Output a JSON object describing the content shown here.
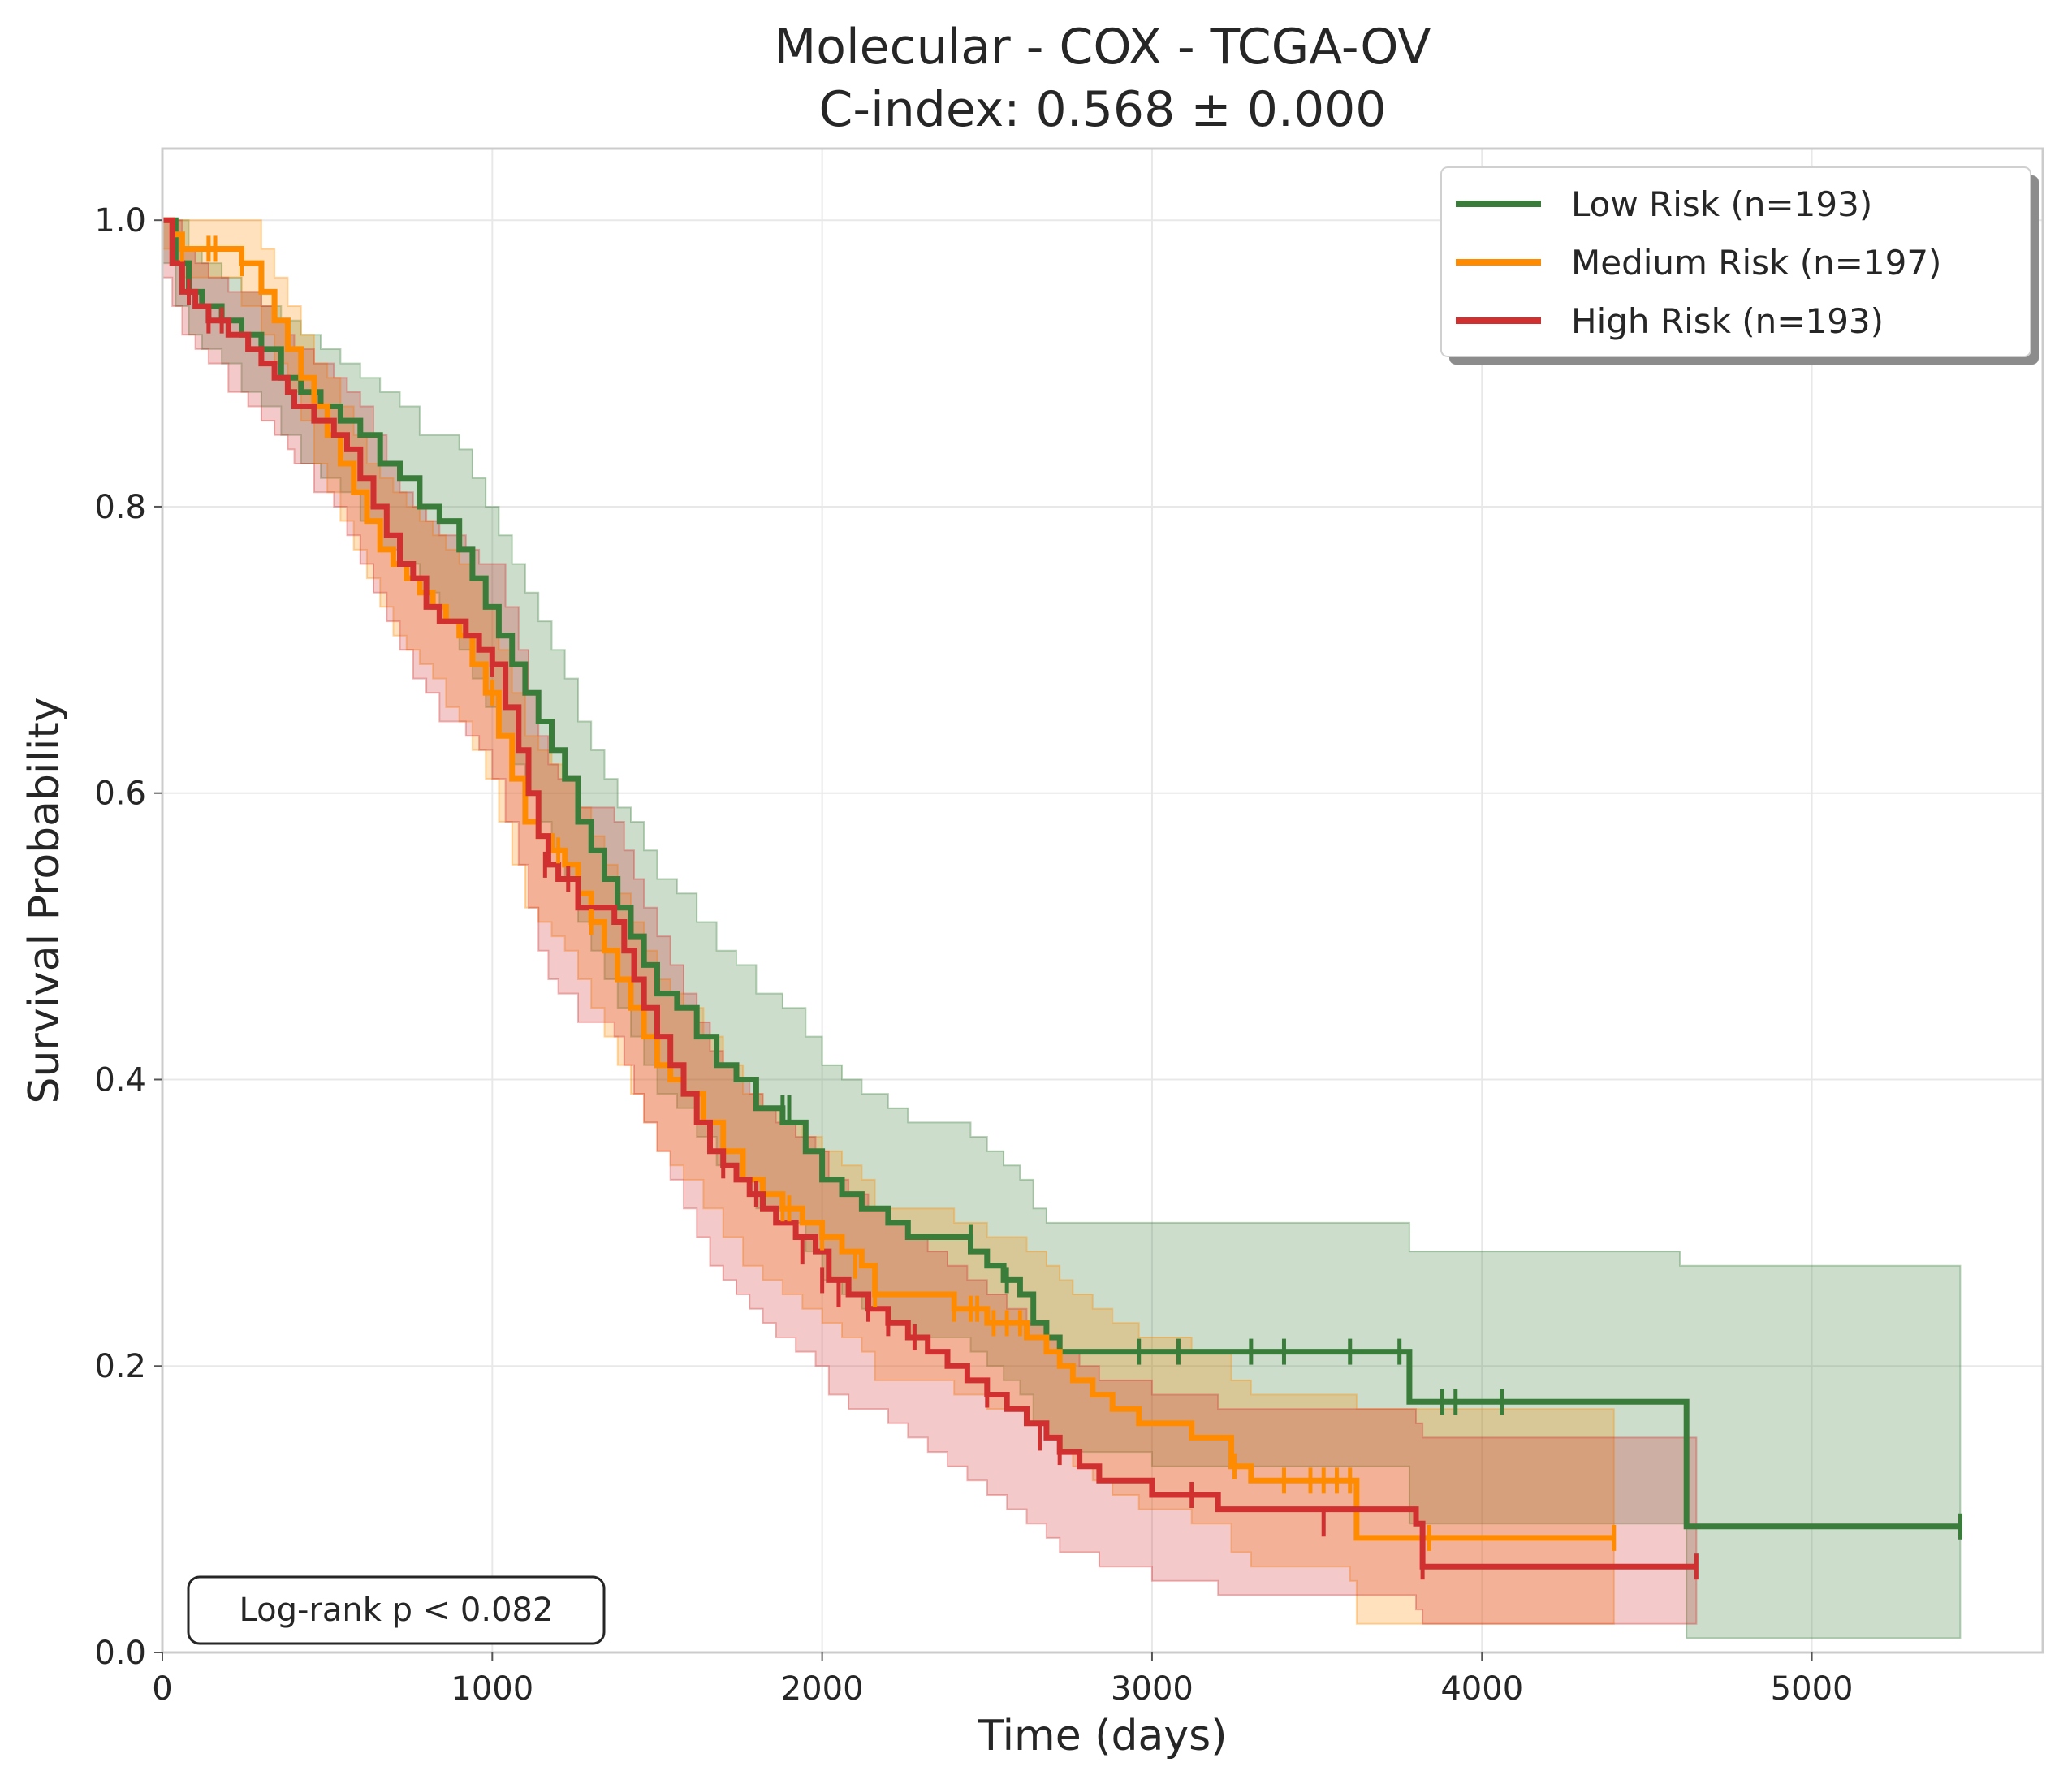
{
  "chart_data": {
    "type": "line",
    "title": "Molecular - COX - TCGA-OV",
    "subtitle": "C-index: 0.568 ± 0.000",
    "xlabel": "Time (days)",
    "ylabel": "Survival Probability",
    "xlim": [
      0,
      5700
    ],
    "ylim": [
      0,
      1.05
    ],
    "xticks": [
      0,
      1000,
      2000,
      3000,
      4000,
      5000
    ],
    "yticks": [
      0.0,
      0.2,
      0.4,
      0.6,
      0.8,
      1.0
    ],
    "xtick_labels": [
      "0",
      "1000",
      "2000",
      "3000",
      "4000",
      "5000"
    ],
    "ytick_labels": [
      "0.0",
      "0.2",
      "0.4",
      "0.6",
      "0.8",
      "1.0"
    ],
    "grid": true,
    "legend_position": "top-right",
    "annotation": "Log-rank p < 0.082",
    "series": [
      {
        "name": "Low Risk (n=193)",
        "color": "#3a7d3a",
        "x": [
          0,
          40,
          80,
          120,
          180,
          240,
          300,
          360,
          420,
          480,
          540,
          600,
          660,
          720,
          780,
          840,
          900,
          940,
          980,
          1020,
          1060,
          1100,
          1140,
          1180,
          1220,
          1260,
          1300,
          1340,
          1380,
          1420,
          1460,
          1500,
          1560,
          1620,
          1680,
          1740,
          1800,
          1880,
          1950,
          2000,
          2060,
          2120,
          2200,
          2260,
          2320,
          2380,
          2450,
          2500,
          2550,
          2600,
          2640,
          2680,
          2720,
          2780,
          3000,
          3500,
          3760,
          3780,
          4600,
          4620,
          5450
        ],
        "y": [
          1.0,
          0.97,
          0.95,
          0.94,
          0.93,
          0.92,
          0.91,
          0.89,
          0.88,
          0.87,
          0.86,
          0.85,
          0.83,
          0.82,
          0.8,
          0.79,
          0.77,
          0.75,
          0.73,
          0.71,
          0.69,
          0.67,
          0.65,
          0.63,
          0.61,
          0.58,
          0.56,
          0.54,
          0.52,
          0.5,
          0.48,
          0.46,
          0.45,
          0.43,
          0.41,
          0.4,
          0.38,
          0.37,
          0.35,
          0.33,
          0.32,
          0.31,
          0.3,
          0.29,
          0.29,
          0.29,
          0.28,
          0.27,
          0.26,
          0.25,
          0.23,
          0.22,
          0.21,
          0.21,
          0.21,
          0.21,
          0.21,
          0.175,
          0.175,
          0.088,
          0.088
        ],
        "ci_lower": [
          0.97,
          0.94,
          0.92,
          0.91,
          0.9,
          0.88,
          0.87,
          0.85,
          0.83,
          0.82,
          0.81,
          0.79,
          0.77,
          0.76,
          0.74,
          0.72,
          0.7,
          0.68,
          0.66,
          0.64,
          0.62,
          0.6,
          0.58,
          0.56,
          0.54,
          0.51,
          0.49,
          0.47,
          0.45,
          0.43,
          0.41,
          0.39,
          0.38,
          0.36,
          0.34,
          0.33,
          0.31,
          0.3,
          0.28,
          0.26,
          0.25,
          0.24,
          0.23,
          0.22,
          0.22,
          0.22,
          0.21,
          0.2,
          0.19,
          0.18,
          0.16,
          0.15,
          0.14,
          0.14,
          0.13,
          0.13,
          0.13,
          0.09,
          0.09,
          0.01,
          0.01
        ],
        "ci_upper": [
          1.0,
          1.0,
          0.98,
          0.97,
          0.96,
          0.95,
          0.94,
          0.93,
          0.92,
          0.91,
          0.9,
          0.89,
          0.88,
          0.87,
          0.85,
          0.85,
          0.84,
          0.82,
          0.8,
          0.78,
          0.76,
          0.74,
          0.72,
          0.7,
          0.68,
          0.65,
          0.63,
          0.61,
          0.59,
          0.58,
          0.56,
          0.54,
          0.53,
          0.51,
          0.49,
          0.48,
          0.46,
          0.45,
          0.43,
          0.41,
          0.4,
          0.39,
          0.38,
          0.37,
          0.37,
          0.37,
          0.36,
          0.35,
          0.34,
          0.33,
          0.31,
          0.3,
          0.3,
          0.3,
          0.3,
          0.3,
          0.3,
          0.28,
          0.27,
          0.27,
          0.27
        ],
        "censored_x": [
          1880,
          1900,
          2450,
          2560,
          2960,
          3080,
          3300,
          3400,
          3600,
          3750,
          3880,
          3920,
          4060,
          5450
        ],
        "censored_y": [
          0.38,
          0.38,
          0.29,
          0.26,
          0.21,
          0.21,
          0.21,
          0.21,
          0.21,
          0.21,
          0.175,
          0.175,
          0.175,
          0.088
        ]
      },
      {
        "name": "Medium Risk (n=197)",
        "color": "#ff8c00",
        "x": [
          0,
          30,
          60,
          100,
          160,
          240,
          300,
          340,
          380,
          420,
          460,
          500,
          540,
          580,
          620,
          660,
          700,
          740,
          780,
          820,
          860,
          900,
          940,
          980,
          1020,
          1060,
          1100,
          1140,
          1180,
          1220,
          1260,
          1300,
          1340,
          1380,
          1420,
          1460,
          1500,
          1540,
          1580,
          1640,
          1700,
          1760,
          1820,
          1880,
          1940,
          2000,
          2060,
          2120,
          2160,
          2200,
          2300,
          2400,
          2500,
          2560,
          2620,
          2680,
          2720,
          2760,
          2820,
          2880,
          2960,
          3050,
          3120,
          3240,
          3300,
          3360,
          3600,
          3620,
          4400
        ],
        "y": [
          1.0,
          0.99,
          0.98,
          0.98,
          0.98,
          0.97,
          0.95,
          0.93,
          0.91,
          0.89,
          0.87,
          0.85,
          0.83,
          0.81,
          0.79,
          0.77,
          0.76,
          0.75,
          0.74,
          0.73,
          0.72,
          0.71,
          0.69,
          0.67,
          0.64,
          0.61,
          0.58,
          0.57,
          0.56,
          0.55,
          0.53,
          0.51,
          0.49,
          0.47,
          0.45,
          0.43,
          0.41,
          0.4,
          0.39,
          0.37,
          0.35,
          0.33,
          0.32,
          0.31,
          0.3,
          0.29,
          0.28,
          0.27,
          0.25,
          0.25,
          0.25,
          0.24,
          0.23,
          0.23,
          0.22,
          0.21,
          0.2,
          0.19,
          0.18,
          0.17,
          0.16,
          0.16,
          0.15,
          0.13,
          0.12,
          0.12,
          0.12,
          0.08,
          0.08
        ],
        "ci_lower": [
          0.98,
          0.97,
          0.96,
          0.96,
          0.96,
          0.94,
          0.92,
          0.9,
          0.88,
          0.86,
          0.83,
          0.81,
          0.79,
          0.77,
          0.75,
          0.73,
          0.71,
          0.7,
          0.69,
          0.68,
          0.66,
          0.65,
          0.63,
          0.61,
          0.58,
          0.55,
          0.52,
          0.51,
          0.5,
          0.49,
          0.47,
          0.45,
          0.43,
          0.41,
          0.39,
          0.37,
          0.35,
          0.34,
          0.33,
          0.31,
          0.29,
          0.27,
          0.26,
          0.25,
          0.24,
          0.23,
          0.22,
          0.21,
          0.19,
          0.19,
          0.19,
          0.18,
          0.17,
          0.17,
          0.16,
          0.15,
          0.14,
          0.13,
          0.12,
          0.11,
          0.1,
          0.1,
          0.09,
          0.07,
          0.06,
          0.06,
          0.05,
          0.02,
          0.02
        ],
        "ci_upper": [
          1.0,
          1.0,
          1.0,
          1.0,
          1.0,
          1.0,
          0.98,
          0.96,
          0.94,
          0.92,
          0.9,
          0.89,
          0.87,
          0.85,
          0.83,
          0.82,
          0.81,
          0.8,
          0.79,
          0.78,
          0.77,
          0.76,
          0.75,
          0.73,
          0.7,
          0.67,
          0.64,
          0.63,
          0.62,
          0.61,
          0.59,
          0.57,
          0.55,
          0.53,
          0.51,
          0.49,
          0.47,
          0.46,
          0.45,
          0.43,
          0.41,
          0.39,
          0.38,
          0.37,
          0.36,
          0.35,
          0.34,
          0.33,
          0.31,
          0.31,
          0.31,
          0.3,
          0.29,
          0.29,
          0.28,
          0.27,
          0.26,
          0.25,
          0.24,
          0.23,
          0.22,
          0.22,
          0.21,
          0.19,
          0.18,
          0.18,
          0.18,
          0.17,
          0.17
        ],
        "censored_x": [
          60,
          140,
          160,
          240,
          1000,
          1200,
          1300,
          1880,
          1900,
          2000,
          2100,
          2160,
          2400,
          2450,
          2470,
          2520,
          2560,
          2600,
          3250,
          3400,
          3480,
          3520,
          3560,
          3600,
          3840,
          4400
        ],
        "censored_y": [
          0.98,
          0.98,
          0.98,
          0.97,
          0.67,
          0.56,
          0.51,
          0.31,
          0.31,
          0.29,
          0.27,
          0.25,
          0.24,
          0.24,
          0.24,
          0.23,
          0.23,
          0.23,
          0.13,
          0.12,
          0.12,
          0.12,
          0.12,
          0.12,
          0.08,
          0.08
        ]
      },
      {
        "name": "High Risk (n=193)",
        "color": "#d03030",
        "x": [
          0,
          30,
          60,
          100,
          140,
          200,
          260,
          300,
          340,
          380,
          400,
          460,
          520,
          560,
          600,
          640,
          680,
          720,
          760,
          800,
          840,
          880,
          920,
          960,
          1000,
          1040,
          1080,
          1110,
          1140,
          1170,
          1200,
          1260,
          1320,
          1370,
          1400,
          1430,
          1460,
          1500,
          1540,
          1580,
          1620,
          1660,
          1700,
          1740,
          1780,
          1820,
          1860,
          1920,
          1980,
          2020,
          2080,
          2140,
          2200,
          2260,
          2320,
          2380,
          2440,
          2500,
          2560,
          2620,
          2680,
          2720,
          2780,
          2840,
          3000,
          3200,
          3800,
          3820,
          4650
        ],
        "y": [
          1.0,
          0.97,
          0.95,
          0.94,
          0.93,
          0.92,
          0.91,
          0.9,
          0.89,
          0.88,
          0.87,
          0.86,
          0.85,
          0.84,
          0.82,
          0.8,
          0.78,
          0.76,
          0.75,
          0.73,
          0.72,
          0.72,
          0.71,
          0.7,
          0.69,
          0.66,
          0.63,
          0.6,
          0.57,
          0.55,
          0.54,
          0.52,
          0.52,
          0.51,
          0.49,
          0.47,
          0.45,
          0.43,
          0.41,
          0.39,
          0.37,
          0.35,
          0.34,
          0.33,
          0.32,
          0.31,
          0.3,
          0.29,
          0.28,
          0.26,
          0.25,
          0.24,
          0.23,
          0.22,
          0.21,
          0.2,
          0.19,
          0.18,
          0.17,
          0.16,
          0.15,
          0.14,
          0.13,
          0.12,
          0.11,
          0.1,
          0.09,
          0.06,
          0.06
        ],
        "ci_lower": [
          0.96,
          0.94,
          0.92,
          0.91,
          0.9,
          0.88,
          0.87,
          0.86,
          0.85,
          0.84,
          0.83,
          0.81,
          0.8,
          0.78,
          0.76,
          0.74,
          0.72,
          0.7,
          0.68,
          0.67,
          0.65,
          0.65,
          0.64,
          0.63,
          0.61,
          0.58,
          0.55,
          0.52,
          0.49,
          0.47,
          0.46,
          0.44,
          0.44,
          0.43,
          0.41,
          0.39,
          0.37,
          0.35,
          0.33,
          0.31,
          0.29,
          0.27,
          0.26,
          0.25,
          0.24,
          0.23,
          0.22,
          0.21,
          0.2,
          0.18,
          0.17,
          0.17,
          0.16,
          0.15,
          0.14,
          0.13,
          0.12,
          0.11,
          0.1,
          0.09,
          0.08,
          0.07,
          0.07,
          0.06,
          0.05,
          0.04,
          0.03,
          0.02,
          0.02
        ],
        "ci_upper": [
          1.0,
          1.0,
          0.98,
          0.97,
          0.96,
          0.95,
          0.95,
          0.94,
          0.93,
          0.92,
          0.91,
          0.9,
          0.89,
          0.88,
          0.87,
          0.85,
          0.83,
          0.81,
          0.8,
          0.79,
          0.78,
          0.78,
          0.77,
          0.76,
          0.76,
          0.73,
          0.7,
          0.67,
          0.64,
          0.62,
          0.61,
          0.59,
          0.59,
          0.58,
          0.56,
          0.54,
          0.52,
          0.5,
          0.48,
          0.46,
          0.44,
          0.42,
          0.41,
          0.4,
          0.39,
          0.38,
          0.37,
          0.36,
          0.35,
          0.33,
          0.32,
          0.31,
          0.3,
          0.29,
          0.28,
          0.27,
          0.26,
          0.25,
          0.24,
          0.23,
          0.22,
          0.21,
          0.2,
          0.19,
          0.18,
          0.17,
          0.16,
          0.15,
          0.15
        ],
        "censored_x": [
          80,
          140,
          180,
          1000,
          1160,
          1230,
          1700,
          1800,
          1940,
          2000,
          2050,
          2140,
          2200,
          2280,
          2500,
          2660,
          2720,
          3120,
          3520,
          3820,
          4650
        ],
        "censored_y": [
          0.95,
          0.93,
          0.93,
          0.69,
          0.55,
          0.54,
          0.34,
          0.32,
          0.28,
          0.26,
          0.25,
          0.24,
          0.23,
          0.22,
          0.18,
          0.15,
          0.14,
          0.11,
          0.09,
          0.06,
          0.06
        ]
      }
    ]
  }
}
